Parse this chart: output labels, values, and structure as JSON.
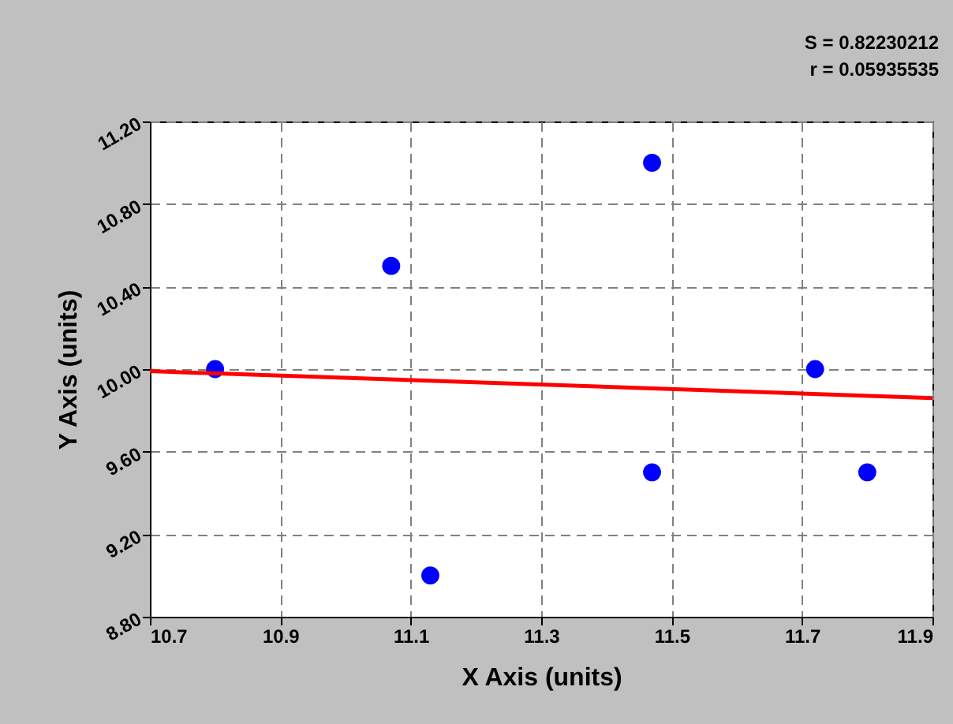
{
  "chart_data": {
    "type": "scatter",
    "xlabel": "X Axis (units)",
    "ylabel": "Y Axis (units)",
    "annotations": [
      "S = 0.82230212",
      "r = 0.05935535"
    ],
    "xlim": [
      10.7,
      11.9
    ],
    "xticks": [
      10.7,
      10.9,
      11.1,
      11.3,
      11.5,
      11.7,
      11.9
    ],
    "ylim": [
      8.8,
      11.2
    ],
    "yticks": [
      {
        "value": 8.8,
        "label": "8.80"
      },
      {
        "value": 9.2,
        "label": "9.20"
      },
      {
        "value": 9.6,
        "label": "9.60"
      },
      {
        "value": 10.0,
        "label": "10.00"
      },
      {
        "value": 10.4,
        "label": "10.40"
      },
      {
        "value": 10.8,
        "label": "10.80"
      },
      {
        "value": 11.2,
        "label": "11.20"
      }
    ],
    "grid": true,
    "series": [
      {
        "color": "#0000ff",
        "marker": "circle",
        "x": [
          10.8,
          11.07,
          11.13,
          11.47,
          11.47,
          11.72,
          11.8
        ],
        "values": [
          10.0,
          10.5,
          9.0,
          11.0,
          9.5,
          10.0,
          9.5
        ]
      },
      {
        "type": "line",
        "color": "#ff0000",
        "line_style": "solid",
        "marker": "none",
        "x": [
          10.7,
          11.9
        ],
        "values": [
          9.99,
          9.86
        ]
      }
    ]
  }
}
